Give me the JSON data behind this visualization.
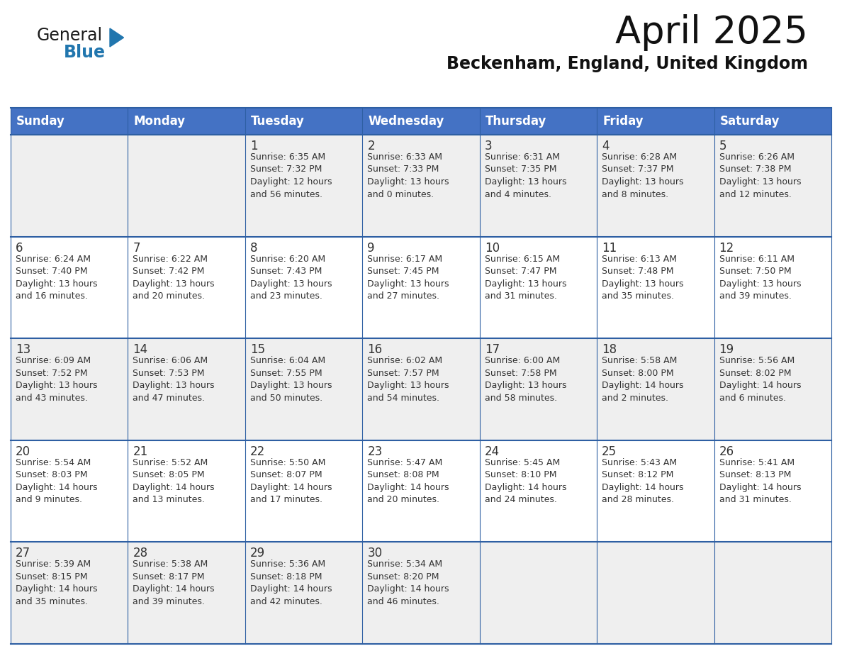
{
  "title": "April 2025",
  "subtitle": "Beckenham, England, United Kingdom",
  "header_bg_color": "#4472C4",
  "header_text_color": "#FFFFFF",
  "row_bg_odd": "#EFEFEF",
  "row_bg_even": "#FFFFFF",
  "cell_border_color": "#2E5FA3",
  "text_color": "#333333",
  "day_headers": [
    "Sunday",
    "Monday",
    "Tuesday",
    "Wednesday",
    "Thursday",
    "Friday",
    "Saturday"
  ],
  "calendar_data": [
    [
      {
        "day": "",
        "info": ""
      },
      {
        "day": "",
        "info": ""
      },
      {
        "day": "1",
        "info": "Sunrise: 6:35 AM\nSunset: 7:32 PM\nDaylight: 12 hours\nand 56 minutes."
      },
      {
        "day": "2",
        "info": "Sunrise: 6:33 AM\nSunset: 7:33 PM\nDaylight: 13 hours\nand 0 minutes."
      },
      {
        "day": "3",
        "info": "Sunrise: 6:31 AM\nSunset: 7:35 PM\nDaylight: 13 hours\nand 4 minutes."
      },
      {
        "day": "4",
        "info": "Sunrise: 6:28 AM\nSunset: 7:37 PM\nDaylight: 13 hours\nand 8 minutes."
      },
      {
        "day": "5",
        "info": "Sunrise: 6:26 AM\nSunset: 7:38 PM\nDaylight: 13 hours\nand 12 minutes."
      }
    ],
    [
      {
        "day": "6",
        "info": "Sunrise: 6:24 AM\nSunset: 7:40 PM\nDaylight: 13 hours\nand 16 minutes."
      },
      {
        "day": "7",
        "info": "Sunrise: 6:22 AM\nSunset: 7:42 PM\nDaylight: 13 hours\nand 20 minutes."
      },
      {
        "day": "8",
        "info": "Sunrise: 6:20 AM\nSunset: 7:43 PM\nDaylight: 13 hours\nand 23 minutes."
      },
      {
        "day": "9",
        "info": "Sunrise: 6:17 AM\nSunset: 7:45 PM\nDaylight: 13 hours\nand 27 minutes."
      },
      {
        "day": "10",
        "info": "Sunrise: 6:15 AM\nSunset: 7:47 PM\nDaylight: 13 hours\nand 31 minutes."
      },
      {
        "day": "11",
        "info": "Sunrise: 6:13 AM\nSunset: 7:48 PM\nDaylight: 13 hours\nand 35 minutes."
      },
      {
        "day": "12",
        "info": "Sunrise: 6:11 AM\nSunset: 7:50 PM\nDaylight: 13 hours\nand 39 minutes."
      }
    ],
    [
      {
        "day": "13",
        "info": "Sunrise: 6:09 AM\nSunset: 7:52 PM\nDaylight: 13 hours\nand 43 minutes."
      },
      {
        "day": "14",
        "info": "Sunrise: 6:06 AM\nSunset: 7:53 PM\nDaylight: 13 hours\nand 47 minutes."
      },
      {
        "day": "15",
        "info": "Sunrise: 6:04 AM\nSunset: 7:55 PM\nDaylight: 13 hours\nand 50 minutes."
      },
      {
        "day": "16",
        "info": "Sunrise: 6:02 AM\nSunset: 7:57 PM\nDaylight: 13 hours\nand 54 minutes."
      },
      {
        "day": "17",
        "info": "Sunrise: 6:00 AM\nSunset: 7:58 PM\nDaylight: 13 hours\nand 58 minutes."
      },
      {
        "day": "18",
        "info": "Sunrise: 5:58 AM\nSunset: 8:00 PM\nDaylight: 14 hours\nand 2 minutes."
      },
      {
        "day": "19",
        "info": "Sunrise: 5:56 AM\nSunset: 8:02 PM\nDaylight: 14 hours\nand 6 minutes."
      }
    ],
    [
      {
        "day": "20",
        "info": "Sunrise: 5:54 AM\nSunset: 8:03 PM\nDaylight: 14 hours\nand 9 minutes."
      },
      {
        "day": "21",
        "info": "Sunrise: 5:52 AM\nSunset: 8:05 PM\nDaylight: 14 hours\nand 13 minutes."
      },
      {
        "day": "22",
        "info": "Sunrise: 5:50 AM\nSunset: 8:07 PM\nDaylight: 14 hours\nand 17 minutes."
      },
      {
        "day": "23",
        "info": "Sunrise: 5:47 AM\nSunset: 8:08 PM\nDaylight: 14 hours\nand 20 minutes."
      },
      {
        "day": "24",
        "info": "Sunrise: 5:45 AM\nSunset: 8:10 PM\nDaylight: 14 hours\nand 24 minutes."
      },
      {
        "day": "25",
        "info": "Sunrise: 5:43 AM\nSunset: 8:12 PM\nDaylight: 14 hours\nand 28 minutes."
      },
      {
        "day": "26",
        "info": "Sunrise: 5:41 AM\nSunset: 8:13 PM\nDaylight: 14 hours\nand 31 minutes."
      }
    ],
    [
      {
        "day": "27",
        "info": "Sunrise: 5:39 AM\nSunset: 8:15 PM\nDaylight: 14 hours\nand 35 minutes."
      },
      {
        "day": "28",
        "info": "Sunrise: 5:38 AM\nSunset: 8:17 PM\nDaylight: 14 hours\nand 39 minutes."
      },
      {
        "day": "29",
        "info": "Sunrise: 5:36 AM\nSunset: 8:18 PM\nDaylight: 14 hours\nand 42 minutes."
      },
      {
        "day": "30",
        "info": "Sunrise: 5:34 AM\nSunset: 8:20 PM\nDaylight: 14 hours\nand 46 minutes."
      },
      {
        "day": "",
        "info": ""
      },
      {
        "day": "",
        "info": ""
      },
      {
        "day": "",
        "info": ""
      }
    ]
  ],
  "logo_color_general": "#1a1a1a",
  "logo_color_blue": "#2176AE",
  "logo_triangle_color": "#2176AE",
  "fig_width": 11.88,
  "fig_height": 9.18,
  "dpi": 100
}
